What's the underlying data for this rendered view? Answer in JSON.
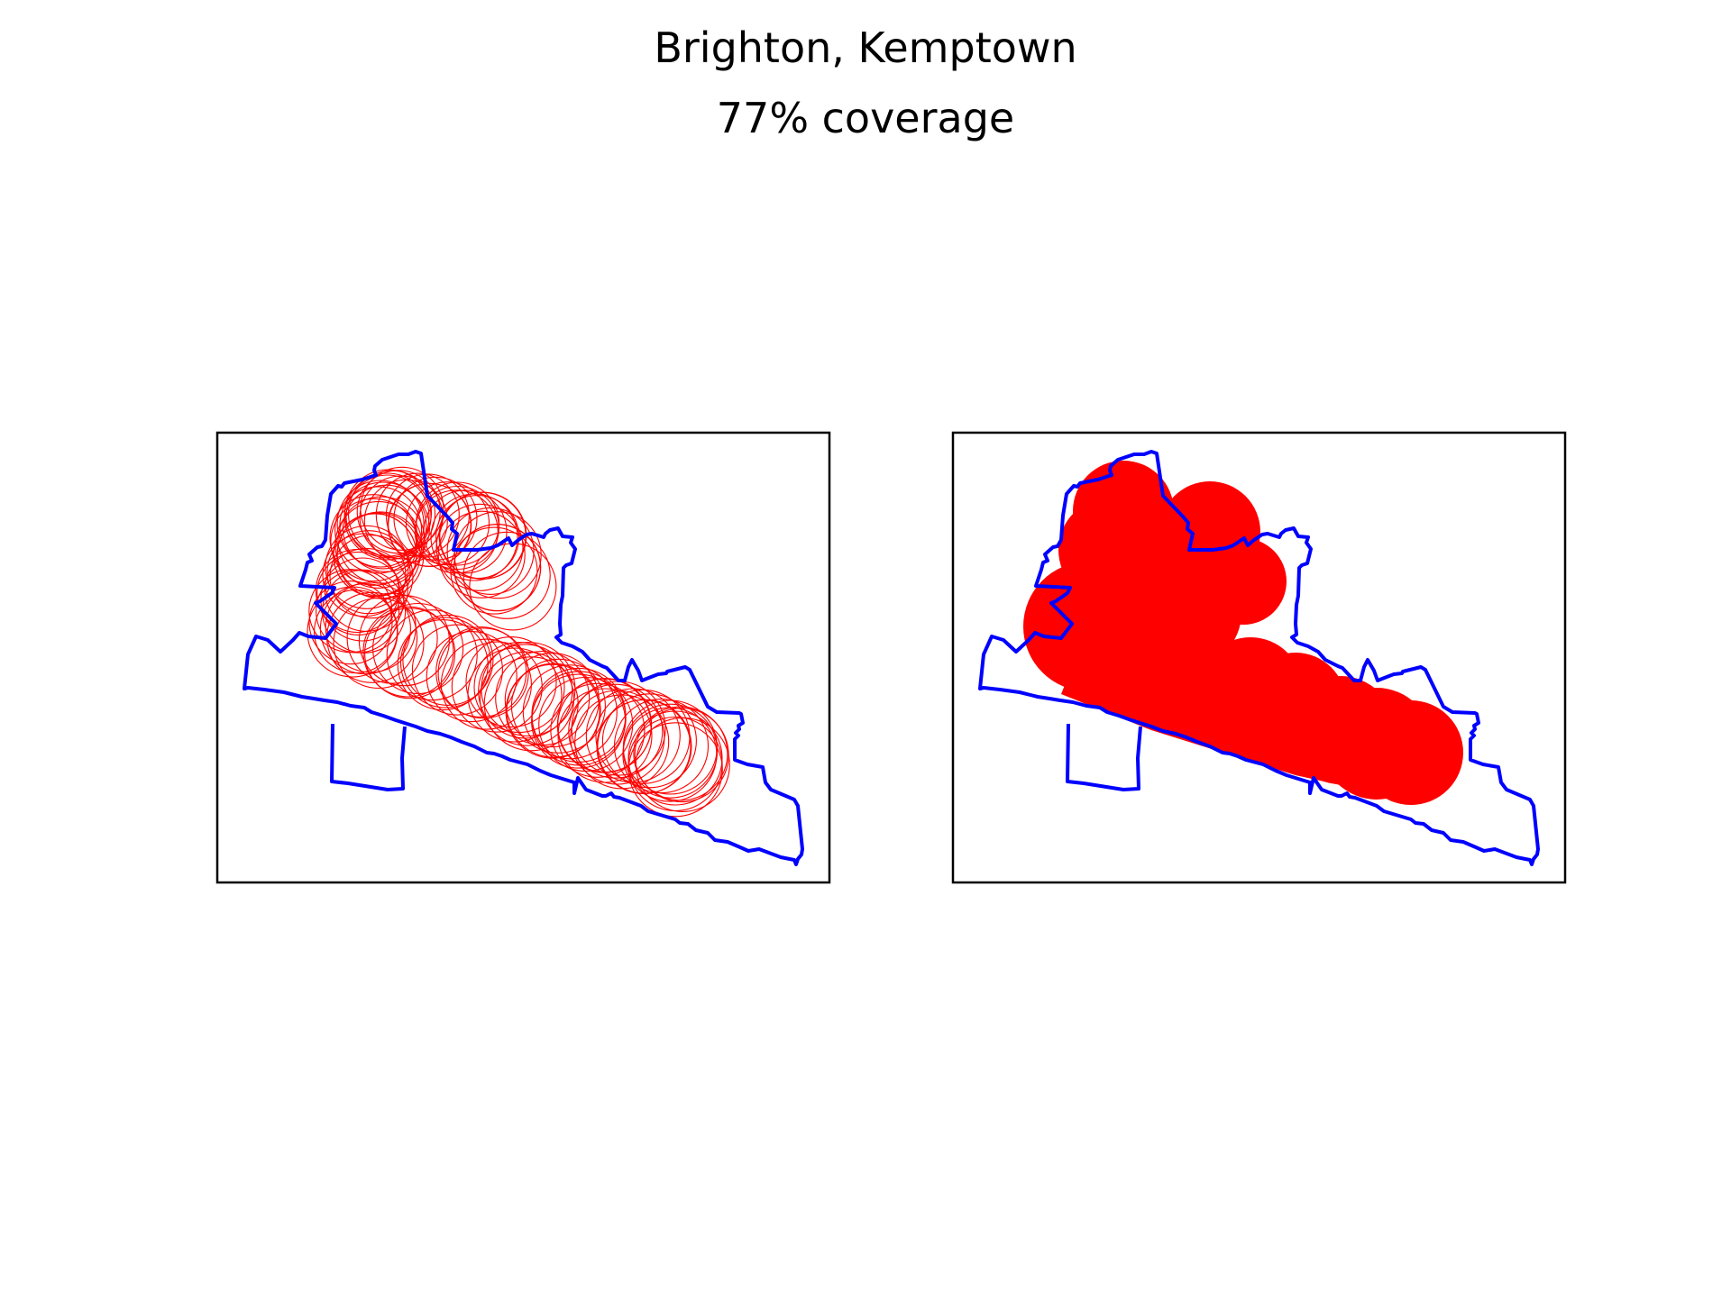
{
  "title": "Brighton, Kemptown",
  "subtitle": "77% coverage",
  "colors": {
    "boundary": "#0000ff",
    "coverage": "#ff0000",
    "axes_frame": "#000000",
    "background": "#ffffff"
  },
  "chart_data": [
    {
      "type": "map",
      "panel": "left",
      "style": "circle-outlines",
      "title": "",
      "xlabel": "",
      "ylabel": "",
      "ticks": "none",
      "grid": false,
      "coverage_percent": 77
    },
    {
      "type": "map",
      "panel": "right",
      "style": "filled-union",
      "title": "",
      "xlabel": "",
      "ylabel": "",
      "ticks": "none",
      "grid": false,
      "coverage_percent": 77
    }
  ]
}
